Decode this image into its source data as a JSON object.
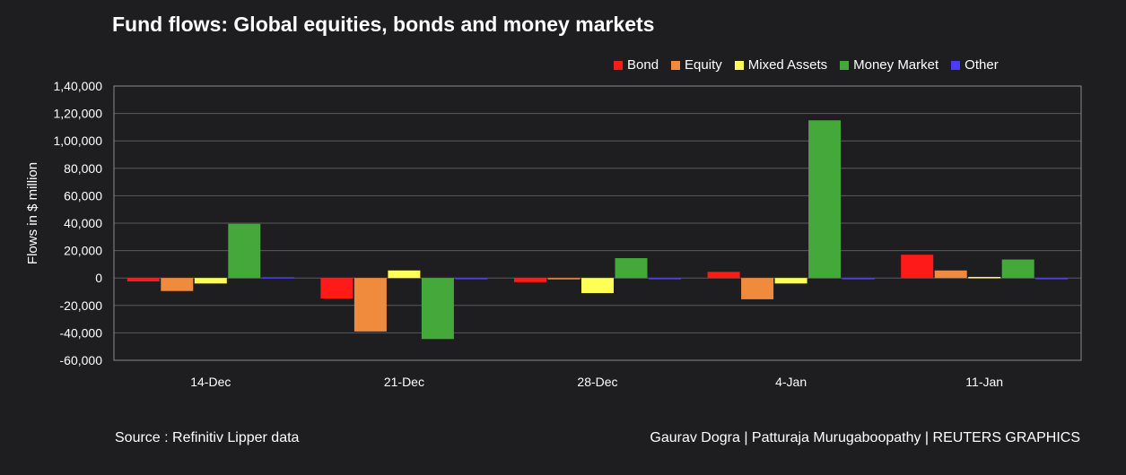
{
  "chart_data": {
    "type": "bar",
    "title": "Fund flows: Global equities, bonds and money markets",
    "xlabel": "",
    "ylabel": "Flows in $ million",
    "categories": [
      "14-Dec",
      "21-Dec",
      "28-Dec",
      "4-Jan",
      "11-Jan"
    ],
    "ylim": [
      -60000,
      140000
    ],
    "yticks": [
      140000,
      120000,
      100000,
      80000,
      60000,
      40000,
      20000,
      0,
      -20000,
      -40000,
      -60000
    ],
    "ytick_labels": [
      "1,40,000",
      "1,20,000",
      "1,00,000",
      "80,000",
      "60,000",
      "40,000",
      "20,000",
      "0",
      "-20,000",
      "-40,000",
      "-60,000"
    ],
    "grid": true,
    "legend_position": "top-right",
    "series": [
      {
        "name": "Bond",
        "color": "#ff1a1a",
        "values": [
          -2500,
          -15000,
          -3000,
          4500,
          17000
        ]
      },
      {
        "name": "Equity",
        "color": "#f08a3c",
        "values": [
          -9500,
          -39000,
          -1000,
          -15500,
          5500
        ]
      },
      {
        "name": "Mixed Assets",
        "color": "#ffff55",
        "values": [
          -4000,
          5500,
          -11000,
          -4000,
          800
        ]
      },
      {
        "name": "Money Market",
        "color": "#44a83a",
        "values": [
          39500,
          -44500,
          14500,
          115000,
          13500
        ]
      },
      {
        "name": "Other",
        "color": "#4a3cff",
        "values": [
          600,
          -400,
          -400,
          -1000,
          -300
        ]
      }
    ]
  },
  "footer": {
    "source": "Source : Refinitiv Lipper data",
    "credit": "Gaurav Dogra | Patturaja Murugaboopathy | REUTERS GRAPHICS"
  }
}
